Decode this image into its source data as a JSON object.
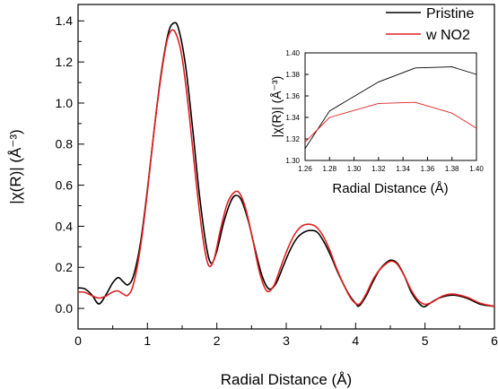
{
  "chart_data": {
    "type": "line",
    "xlabel": "Radial Distance (Å)",
    "ylabel": "|χ(R)| (Å⁻³)",
    "xlim": [
      0,
      6
    ],
    "ylim": [
      -0.1,
      1.48
    ],
    "xticks": [
      "0",
      "1",
      "2",
      "3",
      "4",
      "5",
      "6"
    ],
    "yticks": [
      "0.0",
      "0.2",
      "0.4",
      "0.6",
      "0.8",
      "1.0",
      "1.2",
      "1.4"
    ],
    "legend": {
      "placement": "top-right",
      "entries": [
        "Pristine",
        "w NO2"
      ]
    },
    "series": [
      {
        "name": "Pristine",
        "color": "#000000",
        "points": [
          [
            0.0,
            0.1
          ],
          [
            0.1,
            0.095
          ],
          [
            0.2,
            0.065
          ],
          [
            0.3,
            0.022
          ],
          [
            0.4,
            0.065
          ],
          [
            0.5,
            0.125
          ],
          [
            0.58,
            0.15
          ],
          [
            0.65,
            0.13
          ],
          [
            0.72,
            0.115
          ],
          [
            0.8,
            0.16
          ],
          [
            0.9,
            0.32
          ],
          [
            1.0,
            0.58
          ],
          [
            1.1,
            0.88
          ],
          [
            1.2,
            1.15
          ],
          [
            1.3,
            1.34
          ],
          [
            1.38,
            1.39
          ],
          [
            1.45,
            1.36
          ],
          [
            1.55,
            1.18
          ],
          [
            1.65,
            0.88
          ],
          [
            1.75,
            0.55
          ],
          [
            1.85,
            0.3
          ],
          [
            1.92,
            0.22
          ],
          [
            2.0,
            0.28
          ],
          [
            2.1,
            0.42
          ],
          [
            2.2,
            0.52
          ],
          [
            2.27,
            0.55
          ],
          [
            2.35,
            0.53
          ],
          [
            2.45,
            0.43
          ],
          [
            2.55,
            0.29
          ],
          [
            2.65,
            0.16
          ],
          [
            2.75,
            0.095
          ],
          [
            2.85,
            0.12
          ],
          [
            2.95,
            0.2
          ],
          [
            3.05,
            0.28
          ],
          [
            3.15,
            0.34
          ],
          [
            3.25,
            0.37
          ],
          [
            3.35,
            0.38
          ],
          [
            3.45,
            0.37
          ],
          [
            3.55,
            0.32
          ],
          [
            3.65,
            0.25
          ],
          [
            3.75,
            0.17
          ],
          [
            3.9,
            0.07
          ],
          [
            4.0,
            0.025
          ],
          [
            4.05,
            0.012
          ],
          [
            4.15,
            0.06
          ],
          [
            4.25,
            0.13
          ],
          [
            4.35,
            0.19
          ],
          [
            4.45,
            0.225
          ],
          [
            4.52,
            0.235
          ],
          [
            4.6,
            0.22
          ],
          [
            4.7,
            0.16
          ],
          [
            4.8,
            0.08
          ],
          [
            4.9,
            0.03
          ],
          [
            4.98,
            0.008
          ],
          [
            5.05,
            0.02
          ],
          [
            5.2,
            0.05
          ],
          [
            5.4,
            0.065
          ],
          [
            5.6,
            0.05
          ],
          [
            5.8,
            0.02
          ],
          [
            6.0,
            0.01
          ]
        ]
      },
      {
        "name": "w NO2",
        "color": "#e02020",
        "points": [
          [
            0.0,
            0.08
          ],
          [
            0.1,
            0.078
          ],
          [
            0.2,
            0.062
          ],
          [
            0.3,
            0.05
          ],
          [
            0.4,
            0.06
          ],
          [
            0.5,
            0.08
          ],
          [
            0.58,
            0.085
          ],
          [
            0.65,
            0.07
          ],
          [
            0.72,
            0.065
          ],
          [
            0.8,
            0.12
          ],
          [
            0.9,
            0.3
          ],
          [
            1.0,
            0.57
          ],
          [
            1.1,
            0.88
          ],
          [
            1.2,
            1.14
          ],
          [
            1.28,
            1.3
          ],
          [
            1.35,
            1.355
          ],
          [
            1.42,
            1.33
          ],
          [
            1.5,
            1.22
          ],
          [
            1.6,
            0.95
          ],
          [
            1.7,
            0.62
          ],
          [
            1.8,
            0.34
          ],
          [
            1.88,
            0.21
          ],
          [
            1.96,
            0.24
          ],
          [
            2.05,
            0.38
          ],
          [
            2.15,
            0.51
          ],
          [
            2.25,
            0.565
          ],
          [
            2.33,
            0.56
          ],
          [
            2.42,
            0.48
          ],
          [
            2.52,
            0.33
          ],
          [
            2.62,
            0.17
          ],
          [
            2.72,
            0.085
          ],
          [
            2.82,
            0.11
          ],
          [
            2.92,
            0.2
          ],
          [
            3.02,
            0.29
          ],
          [
            3.12,
            0.36
          ],
          [
            3.22,
            0.4
          ],
          [
            3.32,
            0.41
          ],
          [
            3.42,
            0.4
          ],
          [
            3.52,
            0.36
          ],
          [
            3.62,
            0.29
          ],
          [
            3.72,
            0.2
          ],
          [
            3.85,
            0.1
          ],
          [
            3.95,
            0.04
          ],
          [
            4.05,
            0.02
          ],
          [
            4.15,
            0.07
          ],
          [
            4.25,
            0.14
          ],
          [
            4.35,
            0.19
          ],
          [
            4.45,
            0.22
          ],
          [
            4.52,
            0.23
          ],
          [
            4.6,
            0.215
          ],
          [
            4.7,
            0.16
          ],
          [
            4.8,
            0.09
          ],
          [
            4.9,
            0.04
          ],
          [
            5.0,
            0.02
          ],
          [
            5.1,
            0.03
          ],
          [
            5.25,
            0.06
          ],
          [
            5.4,
            0.07
          ],
          [
            5.6,
            0.055
          ],
          [
            5.8,
            0.025
          ],
          [
            6.0,
            0.01
          ]
        ]
      }
    ],
    "inset": {
      "type": "line",
      "xlabel": "Radial Distance (Å)",
      "ylabel": "|χ(R)| (Å⁻³)",
      "xlim": [
        1.26,
        1.4
      ],
      "ylim": [
        1.3,
        1.4
      ],
      "xticks": [
        "1.26",
        "1.28",
        "1.30",
        "1.32",
        "1.34",
        "1.36",
        "1.38",
        "1.40"
      ],
      "yticks": [
        "1.30",
        "1.32",
        "1.34",
        "1.36",
        "1.38",
        "1.40"
      ],
      "series": [
        {
          "name": "Pristine",
          "color": "#000000",
          "points": [
            [
              1.26,
              1.311
            ],
            [
              1.28,
              1.346
            ],
            [
              1.32,
              1.373
            ],
            [
              1.35,
              1.386
            ],
            [
              1.38,
              1.387
            ],
            [
              1.4,
              1.38
            ]
          ]
        },
        {
          "name": "w NO2",
          "color": "#e02020",
          "points": [
            [
              1.26,
              1.317
            ],
            [
              1.28,
              1.34
            ],
            [
              1.32,
              1.353
            ],
            [
              1.35,
              1.354
            ],
            [
              1.38,
              1.344
            ],
            [
              1.4,
              1.33
            ]
          ]
        }
      ]
    }
  }
}
